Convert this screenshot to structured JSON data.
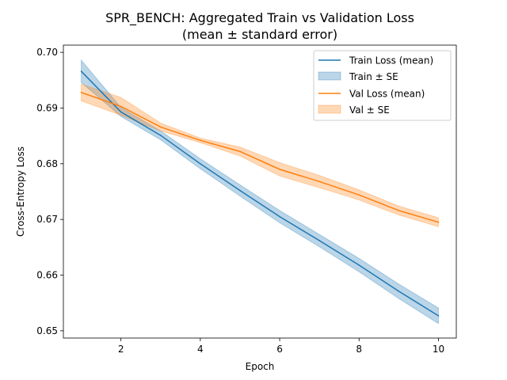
{
  "chart_data": {
    "type": "line",
    "title": "SPR_BENCH: Aggregated Train vs Validation Loss",
    "subtitle": "(mean ± standard error)",
    "xlabel": "Epoch",
    "ylabel": "Cross-Entropy Loss",
    "xlim": [
      0.55,
      10.45
    ],
    "ylim": [
      0.6487,
      0.7013
    ],
    "xticks": [
      2,
      4,
      6,
      8,
      10
    ],
    "yticks": [
      0.65,
      0.66,
      0.67,
      0.68,
      0.69,
      0.7
    ],
    "ytick_labels": [
      "0.65",
      "0.66",
      "0.67",
      "0.68",
      "0.69",
      "0.70"
    ],
    "grid": false,
    "legend_position": "top-right",
    "x": [
      1,
      2,
      3,
      4,
      5,
      6,
      7,
      8,
      9,
      10
    ],
    "series": [
      {
        "name": "Train Loss (mean)",
        "band_name": "Train ± SE",
        "color": "#1f77b4",
        "values": [
          0.6966,
          0.6893,
          0.6851,
          0.68,
          0.6752,
          0.6705,
          0.6662,
          0.6618,
          0.6571,
          0.6527
        ],
        "se": [
          0.002,
          0.0008,
          0.0008,
          0.0009,
          0.001,
          0.0011,
          0.0011,
          0.0012,
          0.0013,
          0.0014
        ]
      },
      {
        "name": "Val Loss (mean)",
        "band_name": "Val ± SE",
        "color": "#ff7f0e",
        "values": [
          0.6928,
          0.6903,
          0.6866,
          0.6842,
          0.6822,
          0.679,
          0.6768,
          0.6744,
          0.6716,
          0.6695
        ],
        "se": [
          0.0015,
          0.0016,
          0.0007,
          0.0004,
          0.0008,
          0.0012,
          0.0011,
          0.0009,
          0.0008,
          0.0008
        ]
      }
    ]
  }
}
